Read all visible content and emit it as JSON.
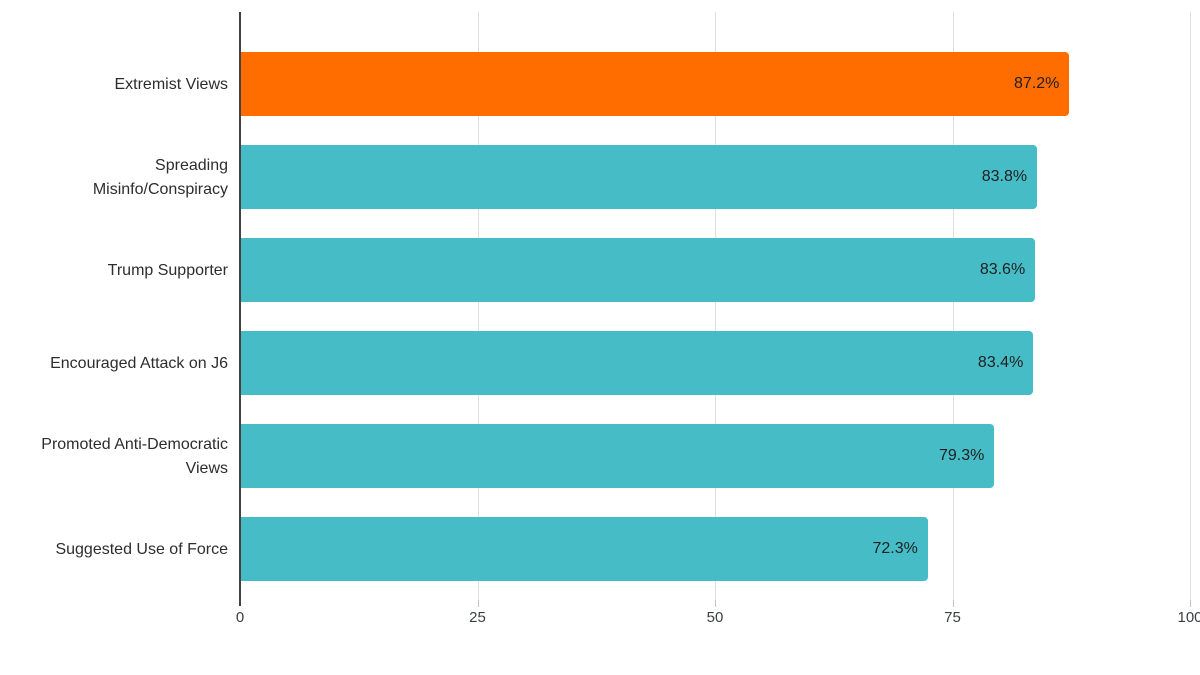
{
  "chart_data": {
    "type": "bar",
    "orientation": "horizontal",
    "title": "",
    "xlabel": "",
    "ylabel": "",
    "categories": [
      "Extremist Views",
      "Spreading Misinfo/Conspiracy",
      "Trump Supporter",
      "Encouraged Attack on J6",
      "Promoted Anti-Democratic Views",
      "Suggested Use of Force"
    ],
    "values": [
      87.2,
      83.8,
      83.6,
      83.4,
      79.3,
      72.3
    ],
    "value_labels": [
      "87.2%",
      "83.8%",
      "83.6%",
      "83.4%",
      "79.3%",
      "72.3%"
    ],
    "bar_colors": [
      "#FF6D01",
      "#46BDC6",
      "#46BDC6",
      "#46BDC6",
      "#46BDC6",
      "#46BDC6"
    ],
    "xlim": [
      0,
      100
    ],
    "x_ticks": [
      0,
      25,
      50,
      75,
      100
    ],
    "x_tick_labels": [
      "0",
      "25",
      "50",
      "75",
      "100"
    ],
    "grid": true,
    "legend": false
  },
  "colors": {
    "highlight_bar": "#FF6D01",
    "default_bar": "#46BDC6",
    "axis_line": "#424242",
    "gridline": "#e0e0e0",
    "value_text": "#1f1f1f",
    "category_text": "#2d2d2d",
    "tick_text": "#3c4043",
    "background": "#ffffff"
  }
}
